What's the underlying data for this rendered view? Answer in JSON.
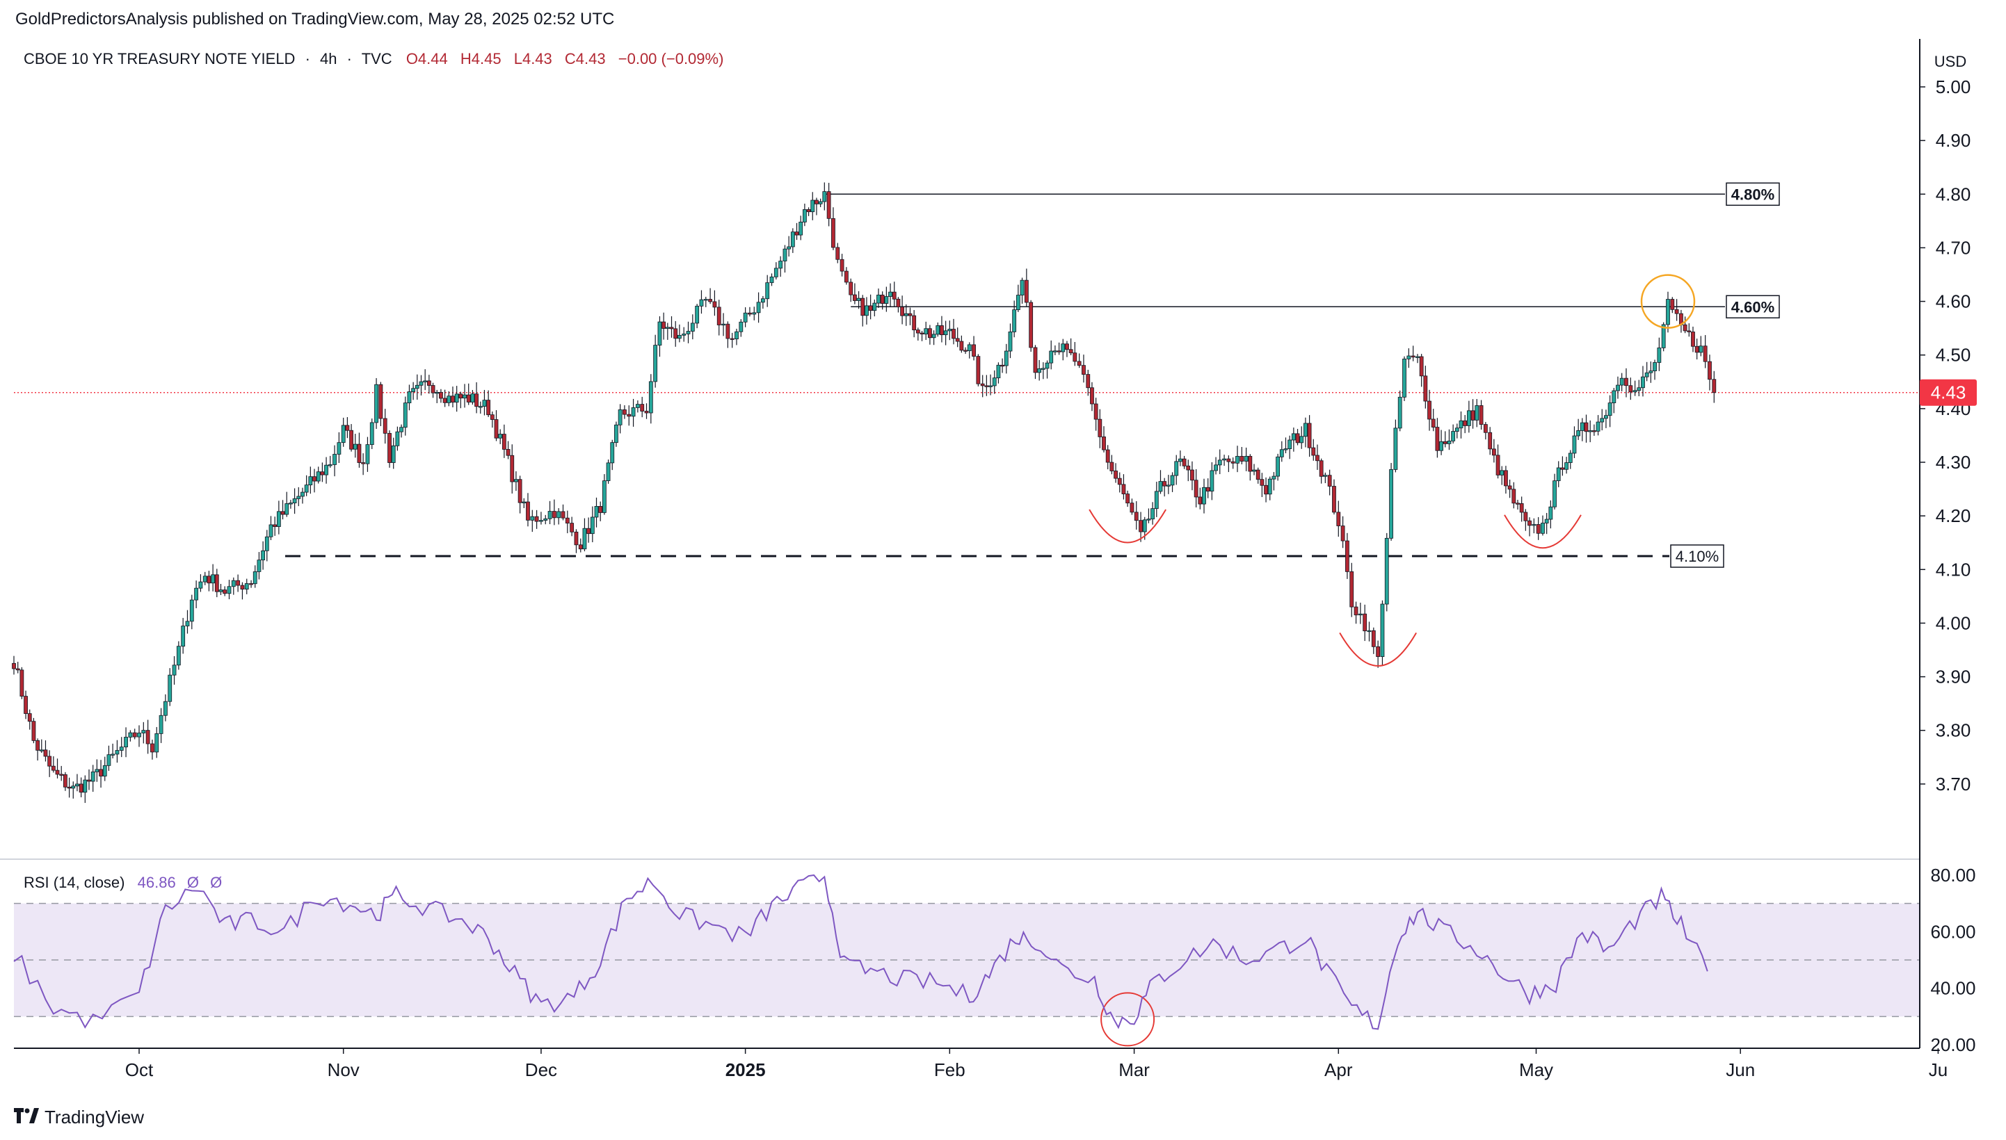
{
  "publisher_line": "GoldPredictorsAnalysis published on TradingView.com, May 28, 2025 02:52 UTC",
  "symbol": {
    "name": "CBOE 10 YR TREASURY NOTE YIELD",
    "interval": "4h",
    "source": "TVC",
    "open": "O4.44",
    "high": "H4.45",
    "low": "L4.43",
    "close": "C4.43",
    "change": "−0.00 (−0.09%)"
  },
  "currency": "USD",
  "last_price": "4.43",
  "indicator": {
    "name": "RSI (14, close)",
    "value": "46.86",
    "extra1": "Ø",
    "extra2": "Ø"
  },
  "footer": {
    "brand": "TradingView"
  },
  "colors": {
    "up": "#26a69a",
    "down": "#b22833",
    "rsi_line": "#7e57c2",
    "rsi_band": "#ede7f6",
    "last_price": "#f23645",
    "pattern_mark": "#e53935",
    "highlight": "#f5a623"
  },
  "chart_data": [
    {
      "type": "candlestick",
      "y_axis": {
        "ticks": [
          "3.70",
          "3.80",
          "3.90",
          "4.00",
          "4.10",
          "4.20",
          "4.30",
          "4.40",
          "4.50",
          "4.60",
          "4.70",
          "4.80",
          "4.90",
          "5.00"
        ],
        "range": [
          3.63,
          5.03
        ]
      },
      "x_axis": {
        "ticks": [
          "Oct",
          "Nov",
          "Dec",
          "2025",
          "Feb",
          "Mar",
          "Apr",
          "May",
          "Jun",
          "Ju"
        ]
      },
      "levels": [
        {
          "label": "4.80%",
          "value": 4.8,
          "style": "solid"
        },
        {
          "label": "4.60%",
          "value": 4.59,
          "style": "solid"
        },
        {
          "label": "4.10%",
          "value": 4.125,
          "style": "dashed"
        }
      ],
      "series": [
        {
          "anchors": [
            [
              "2024-09-12",
              3.93
            ],
            [
              "2024-09-15",
              3.78
            ],
            [
              "2024-09-18",
              3.72
            ],
            [
              "2024-09-21",
              3.69
            ],
            [
              "2024-09-24",
              3.71
            ],
            [
              "2024-09-27",
              3.75
            ],
            [
              "2024-10-01",
              3.8
            ],
            [
              "2024-10-03",
              3.77
            ],
            [
              "2024-10-07",
              3.95
            ],
            [
              "2024-10-09",
              4.05
            ],
            [
              "2024-10-11",
              4.09
            ],
            [
              "2024-10-14",
              4.06
            ],
            [
              "2024-10-18",
              4.08
            ],
            [
              "2024-10-21",
              4.18
            ],
            [
              "2024-10-24",
              4.22
            ],
            [
              "2024-10-27",
              4.26
            ],
            [
              "2024-10-30",
              4.3
            ],
            [
              "2024-11-01",
              4.36
            ],
            [
              "2024-11-04",
              4.3
            ],
            [
              "2024-11-06",
              4.43
            ],
            [
              "2024-11-08",
              4.31
            ],
            [
              "2024-11-11",
              4.42
            ],
            [
              "2024-11-14",
              4.45
            ],
            [
              "2024-11-17",
              4.42
            ],
            [
              "2024-11-20",
              4.42
            ],
            [
              "2024-11-23",
              4.4
            ],
            [
              "2024-11-26",
              4.3
            ],
            [
              "2024-11-29",
              4.19
            ],
            [
              "2024-12-03",
              4.21
            ],
            [
              "2024-12-05",
              4.18
            ],
            [
              "2024-12-07",
              4.15
            ],
            [
              "2024-12-10",
              4.22
            ],
            [
              "2024-12-13",
              4.39
            ],
            [
              "2024-12-17",
              4.4
            ],
            [
              "2024-12-19",
              4.56
            ],
            [
              "2024-12-22",
              4.53
            ],
            [
              "2024-12-26",
              4.6
            ],
            [
              "2024-12-30",
              4.53
            ],
            [
              "2025-01-03",
              4.6
            ],
            [
              "2025-01-07",
              4.69
            ],
            [
              "2025-01-10",
              4.77
            ],
            [
              "2025-01-13",
              4.8
            ],
            [
              "2025-01-15",
              4.67
            ],
            [
              "2025-01-17",
              4.6
            ],
            [
              "2025-01-20",
              4.58
            ],
            [
              "2025-01-23",
              4.63
            ],
            [
              "2025-01-26",
              4.56
            ],
            [
              "2025-01-29",
              4.54
            ],
            [
              "2025-02-01",
              4.54
            ],
            [
              "2025-02-04",
              4.51
            ],
            [
              "2025-02-06",
              4.43
            ],
            [
              "2025-02-09",
              4.49
            ],
            [
              "2025-02-12",
              4.64
            ],
            [
              "2025-02-14",
              4.47
            ],
            [
              "2025-02-17",
              4.52
            ],
            [
              "2025-02-20",
              4.49
            ],
            [
              "2025-02-22",
              4.43
            ],
            [
              "2025-02-25",
              4.3
            ],
            [
              "2025-02-28",
              4.22
            ],
            [
              "2025-03-02",
              4.16
            ],
            [
              "2025-03-05",
              4.25
            ],
            [
              "2025-03-08",
              4.3
            ],
            [
              "2025-03-11",
              4.23
            ],
            [
              "2025-03-14",
              4.3
            ],
            [
              "2025-03-18",
              4.3
            ],
            [
              "2025-03-21",
              4.25
            ],
            [
              "2025-03-24",
              4.33
            ],
            [
              "2025-03-27",
              4.36
            ],
            [
              "2025-03-30",
              4.27
            ],
            [
              "2025-04-01",
              4.19
            ],
            [
              "2025-04-03",
              4.04
            ],
            [
              "2025-04-05",
              4.0
            ],
            [
              "2025-04-07",
              3.93
            ],
            [
              "2025-04-09",
              4.28
            ],
            [
              "2025-04-11",
              4.49
            ],
            [
              "2025-04-13",
              4.49
            ],
            [
              "2025-04-16",
              4.33
            ],
            [
              "2025-04-19",
              4.36
            ],
            [
              "2025-04-22",
              4.4
            ],
            [
              "2025-04-24",
              4.32
            ],
            [
              "2025-04-27",
              4.24
            ],
            [
              "2025-04-30",
              4.17
            ],
            [
              "2025-05-02",
              4.18
            ],
            [
              "2025-05-05",
              4.3
            ],
            [
              "2025-05-08",
              4.36
            ],
            [
              "2025-05-11",
              4.38
            ],
            [
              "2025-05-14",
              4.47
            ],
            [
              "2025-05-16",
              4.43
            ],
            [
              "2025-05-19",
              4.48
            ],
            [
              "2025-05-21",
              4.59
            ],
            [
              "2025-05-23",
              4.55
            ],
            [
              "2025-05-26",
              4.51
            ],
            [
              "2025-05-28",
              4.43
            ]
          ]
        }
      ],
      "annotations": [
        {
          "type": "arc",
          "at": [
            "2025-02-28",
            4.16
          ]
        },
        {
          "type": "arc",
          "at": [
            "2025-04-07",
            3.93
          ]
        },
        {
          "type": "arc",
          "at": [
            "2025-05-02",
            4.15
          ]
        },
        {
          "type": "circle",
          "at": [
            "2025-05-21",
            4.6
          ]
        }
      ]
    },
    {
      "type": "line",
      "name": "RSI (14, close)",
      "y_axis": {
        "ticks": [
          "20.00",
          "40.00",
          "60.00",
          "80.00"
        ],
        "range": [
          20,
          80
        ]
      },
      "band": [
        30,
        70
      ],
      "midline": 50,
      "x": [
        "2024-09-12",
        "2024-09-18",
        "2024-09-24",
        "2024-10-01",
        "2024-10-05",
        "2024-10-10",
        "2024-10-14",
        "2024-10-18",
        "2024-10-23",
        "2024-10-28",
        "2024-11-02",
        "2024-11-06",
        "2024-11-09",
        "2024-11-14",
        "2024-11-19",
        "2024-11-23",
        "2024-11-27",
        "2024-12-01",
        "2024-12-06",
        "2024-12-10",
        "2024-12-14",
        "2024-12-18",
        "2024-12-22",
        "2024-12-27",
        "2025-01-01",
        "2025-01-05",
        "2025-01-09",
        "2025-01-13",
        "2025-01-16",
        "2025-01-20",
        "2025-01-25",
        "2025-01-30",
        "2025-02-04",
        "2025-02-07",
        "2025-02-11",
        "2025-02-14",
        "2025-02-18",
        "2025-02-23",
        "2025-02-26",
        "2025-03-01",
        "2025-03-04",
        "2025-03-08",
        "2025-03-13",
        "2025-03-18",
        "2025-03-23",
        "2025-03-27",
        "2025-03-31",
        "2025-04-03",
        "2025-04-07",
        "2025-04-10",
        "2025-04-13",
        "2025-04-17",
        "2025-04-22",
        "2025-04-26",
        "2025-04-30",
        "2025-05-04",
        "2025-05-08",
        "2025-05-12",
        "2025-05-16",
        "2025-05-20",
        "2025-05-23",
        "2025-05-27"
      ],
      "values": [
        52,
        33,
        28,
        38,
        68,
        76,
        62,
        64,
        60,
        73,
        70,
        66,
        73,
        68,
        64,
        58,
        45,
        34,
        37,
        50,
        72,
        78,
        66,
        62,
        58,
        69,
        75,
        80,
        48,
        46,
        43,
        42,
        37,
        45,
        58,
        57,
        47,
        43,
        28,
        30,
        42,
        49,
        56,
        50,
        54,
        58,
        43,
        33,
        27,
        58,
        67,
        60,
        54,
        45,
        38,
        42,
        60,
        53,
        64,
        72,
        62,
        46
      ]
    }
  ]
}
